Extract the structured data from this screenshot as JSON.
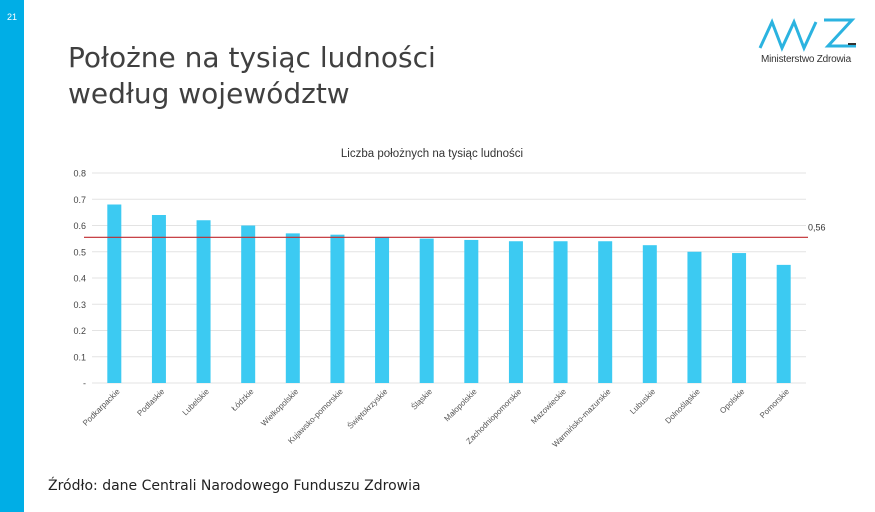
{
  "slide": {
    "number": "21"
  },
  "title": {
    "line1": "Położne na tysiąc ludności",
    "line2": "według województw"
  },
  "logo": {
    "text": "Ministerstwo Zdrowia"
  },
  "colors": {
    "sidebar": "#00aee6",
    "bar": "#3ccaf2",
    "reference_line": "#c0282d",
    "logo": "#2bb3e0"
  },
  "source": "Źródło: dane Centrali Narodowego Funduszu Zdrowia",
  "chart_data": {
    "type": "bar",
    "title": "Liczba położnych na tysiąc ludności",
    "categories": [
      "Podkarpackie",
      "Podlaskie",
      "Lubelskie",
      "Łódzkie",
      "Wielkopolskie",
      "Kujawsko-pomorskie",
      "Świętokrzyskie",
      "Śląskie",
      "Małopolskie",
      "Zachodniopomorskie",
      "Mazowieckie",
      "Warmińsko-mazurskie",
      "Lubuskie",
      "Dolnośląskie",
      "Opolskie",
      "Pomorskie"
    ],
    "values": [
      0.68,
      0.64,
      0.62,
      0.6,
      0.57,
      0.565,
      0.555,
      0.55,
      0.545,
      0.54,
      0.54,
      0.54,
      0.525,
      0.5,
      0.495,
      0.45
    ],
    "ylim": [
      0,
      0.8
    ],
    "yticks": [
      0,
      0.1,
      0.2,
      0.3,
      0.4,
      0.5,
      0.6,
      0.7,
      0.8
    ],
    "ytick_labels": [
      "-",
      "0.1",
      "0.2",
      "0.3",
      "0.4",
      "0.5",
      "0.6",
      "0.7",
      "0.8"
    ],
    "reference_line": {
      "value": 0.555,
      "label": "0,56"
    },
    "grid": true,
    "xlabel": "",
    "ylabel": ""
  }
}
